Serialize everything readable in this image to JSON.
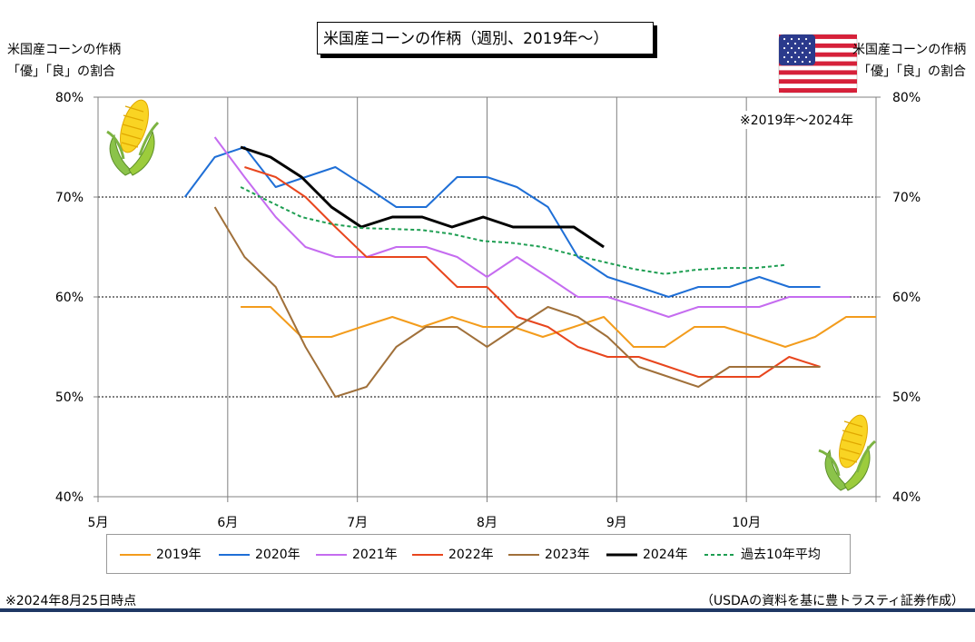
{
  "title": "米国産コーンの作柄（週別、2019年～）",
  "left_axis_title": [
    "米国産コーンの作柄",
    "「優」「良」の割合"
  ],
  "right_axis_title": [
    "米国産コーンの作柄",
    "「優」「良」の割合"
  ],
  "annotation": "※2019年～2024年",
  "footnote_left": "※2024年8月25日時点",
  "footnote_right": "（USDAの資料を基に豊トラスティ証券作成）",
  "icons": [
    "corn-icon",
    "us-flag-icon"
  ],
  "colors": {
    "2019": "#f39c1c",
    "2020": "#1f6fd6",
    "2021": "#c56cf0",
    "2022": "#e8461e",
    "2023": "#a0703a",
    "2024": "#000000",
    "avg10": "#1e9e52",
    "footer_bar": "#1f3864"
  },
  "chart_data": {
    "type": "line",
    "x_unit": "month",
    "xlim": [
      5,
      11
    ],
    "x_ticks": [
      5,
      6,
      7,
      8,
      9,
      10
    ],
    "x_tick_labels": [
      "5月",
      "6月",
      "7月",
      "8月",
      "9月",
      "10月"
    ],
    "ylim": [
      40,
      80
    ],
    "y_ticks": [
      40,
      50,
      60,
      70,
      80
    ],
    "y_tick_labels": [
      "40%",
      "50%",
      "60%",
      "70%",
      "80%"
    ],
    "grid": true,
    "legend_position": "bottom",
    "series": [
      {
        "name": "2019年",
        "key": "2019",
        "style": "solid",
        "x": [
          6.1,
          6.33,
          6.57,
          6.8,
          7.03,
          7.27,
          7.5,
          7.73,
          7.97,
          8.2,
          8.43,
          8.67,
          8.9,
          9.13,
          9.37,
          9.6,
          9.83,
          10.07,
          10.3,
          10.53,
          10.77,
          11.0
        ],
        "y": [
          59,
          59,
          56,
          56,
          57,
          58,
          57,
          58,
          57,
          57,
          56,
          57,
          58,
          55,
          55,
          57,
          57,
          56,
          55,
          56,
          58,
          58
        ]
      },
      {
        "name": "2020年",
        "key": "2020",
        "style": "solid",
        "x": [
          5.67,
          5.9,
          6.13,
          6.37,
          6.6,
          6.83,
          7.07,
          7.3,
          7.53,
          7.77,
          8.0,
          8.23,
          8.47,
          8.7,
          8.93,
          9.17,
          9.4,
          9.63,
          9.87,
          10.1,
          10.33,
          10.57
        ],
        "y": [
          70,
          74,
          75,
          71,
          72,
          73,
          71,
          69,
          69,
          72,
          72,
          71,
          69,
          64,
          62,
          61,
          60,
          61,
          61,
          62,
          61,
          61
        ]
      },
      {
        "name": "2021年",
        "key": "2021",
        "style": "solid",
        "x": [
          5.9,
          6.13,
          6.37,
          6.6,
          6.83,
          7.07,
          7.3,
          7.53,
          7.77,
          8.0,
          8.23,
          8.47,
          8.7,
          8.93,
          9.17,
          9.4,
          9.63,
          9.87,
          10.1,
          10.33,
          10.57,
          10.8
        ],
        "y": [
          76,
          72,
          68,
          65,
          64,
          64,
          65,
          65,
          64,
          62,
          64,
          62,
          60,
          60,
          59,
          58,
          59,
          59,
          59,
          60,
          60,
          60
        ]
      },
      {
        "name": "2022年",
        "key": "2022",
        "style": "solid",
        "x": [
          6.13,
          6.37,
          6.6,
          6.83,
          7.07,
          7.3,
          7.53,
          7.77,
          8.0,
          8.23,
          8.47,
          8.7,
          8.93,
          9.17,
          9.4,
          9.63,
          9.87,
          10.1,
          10.33,
          10.57
        ],
        "y": [
          73,
          72,
          70,
          67,
          64,
          64,
          64,
          61,
          61,
          58,
          57,
          55,
          54,
          54,
          53,
          52,
          52,
          52,
          54,
          53
        ]
      },
      {
        "name": "2023年",
        "key": "2023",
        "style": "solid",
        "x": [
          5.9,
          6.13,
          6.37,
          6.6,
          6.83,
          7.07,
          7.3,
          7.53,
          7.77,
          8.0,
          8.23,
          8.47,
          8.7,
          8.93,
          9.17,
          9.4,
          9.63,
          9.87,
          10.1,
          10.33,
          10.57
        ],
        "y": [
          69,
          64,
          61,
          55,
          50,
          51,
          55,
          57,
          57,
          55,
          57,
          59,
          58,
          56,
          53,
          52,
          51,
          53,
          53,
          53,
          53
        ]
      },
      {
        "name": "2024年",
        "key": "2024",
        "style": "solid-bold",
        "x": [
          6.1,
          6.33,
          6.57,
          6.8,
          7.03,
          7.27,
          7.5,
          7.73,
          7.97,
          8.2,
          8.43,
          8.67,
          8.9
        ],
        "y": [
          75,
          74,
          72,
          69,
          67,
          68,
          68,
          67,
          68,
          67,
          67,
          67,
          65
        ]
      },
      {
        "name": "過去10年平均",
        "key": "avg10",
        "style": "dashed",
        "x": [
          6.1,
          6.33,
          6.57,
          6.8,
          7.03,
          7.27,
          7.5,
          7.73,
          7.97,
          8.2,
          8.43,
          8.67,
          8.9,
          9.13,
          9.37,
          9.6,
          9.83,
          10.07,
          10.3
        ],
        "y": [
          71,
          69.5,
          68,
          67.3,
          66.9,
          66.8,
          66.7,
          66.3,
          65.6,
          65.4,
          65,
          64.2,
          63.5,
          62.8,
          62.3,
          62.7,
          62.9,
          62.9,
          63.2
        ]
      }
    ]
  }
}
